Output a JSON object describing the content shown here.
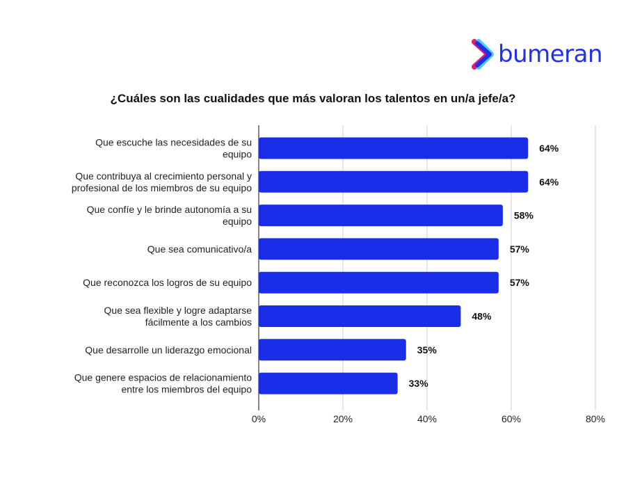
{
  "brand": {
    "name": "bumeran"
  },
  "chart_data": {
    "type": "bar",
    "orientation": "horizontal",
    "title": "¿Cuáles son las cualidades que más valoran los talentos en un/a jefe/a?",
    "categories": [
      [
        "Que escuche las necesidades de su",
        "equipo"
      ],
      [
        "Que contribuya al crecimiento personal y",
        "profesional de los miembros de su equipo"
      ],
      [
        "Que confíe y le brinde autonomía a su",
        "equipo"
      ],
      [
        "Que sea comunicativo/a"
      ],
      [
        "Que reconozca los logros de su equipo"
      ],
      [
        "Que sea flexible y logre adaptarse",
        "fácilmente a los cambios"
      ],
      [
        "Que desarrolle un liderazgo emocional"
      ],
      [
        "Que genere espacios de relacionamiento",
        "entre los miembros del equipo"
      ]
    ],
    "values": [
      64,
      64,
      58,
      57,
      57,
      48,
      35,
      33
    ],
    "data_labels": [
      "64%",
      "64%",
      "58%",
      "57%",
      "57%",
      "48%",
      "35%",
      "33%"
    ],
    "xlim": [
      0,
      80
    ],
    "xticks": [
      0,
      20,
      40,
      60,
      80
    ],
    "xtick_labels": [
      "0%",
      "20%",
      "40%",
      "60%",
      "80%"
    ],
    "xlabel": "",
    "ylabel": "",
    "grid": "vertical",
    "legend": "none",
    "bar_color": "#1a2ee8"
  }
}
